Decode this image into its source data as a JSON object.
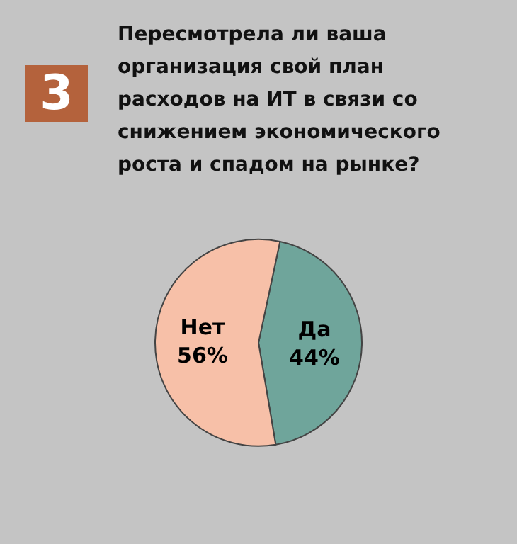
{
  "chart_data": {
    "type": "pie",
    "title": "Пересмотрела ли ваша\nорганизация свой план\nрасходов на ИТ в связи со\nснижением экономического\nроста и спадом на рынке?",
    "annotations": [
      "3"
    ],
    "categories": [
      "Да",
      "Нет"
    ],
    "values": [
      44,
      56
    ],
    "value_labels": [
      "44%",
      "56%"
    ],
    "colors": [
      "#6fa59b",
      "#f7c0a8"
    ]
  }
}
